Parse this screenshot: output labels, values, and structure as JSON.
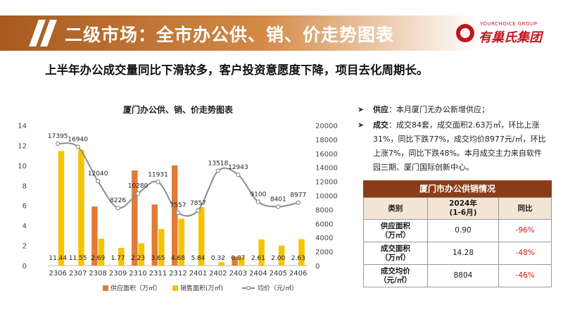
{
  "header": {
    "title": "二级市场：全市办公供、销、价走势图表",
    "logo_sub": "YOURCHOICE GROUP",
    "logo_name": "有巢氏集团"
  },
  "subtitle": "上半年办公成交量同比下滑较多，客户投资意愿度下降，项目去化周期长。",
  "colors": {
    "supply": "#e07b39",
    "sales": "#f5c400",
    "price": "#8c8c8c",
    "header": "#b5682b",
    "table_header": "#8a3d16",
    "negative": "#d21a1a"
  },
  "chart_data": {
    "type": "bar",
    "title": "厦门办公供、销、价走势图表",
    "categories": [
      "2306",
      "2307",
      "2308",
      "2309",
      "2310",
      "2311",
      "2312",
      "2401",
      "2402",
      "2403",
      "2404",
      "2405",
      "2406"
    ],
    "series": [
      {
        "name": "供应面积（万㎡）",
        "type": "bar",
        "axis": "left",
        "values": [
          0,
          0,
          5.9,
          0,
          9.5,
          6.1,
          10.0,
          0,
          0,
          0.9,
          0,
          0,
          0
        ]
      },
      {
        "name": "销售面积(万㎡)",
        "type": "bar",
        "axis": "left",
        "values": [
          11.44,
          11.55,
          2.69,
          1.77,
          2.23,
          3.65,
          4.68,
          5.84,
          0.32,
          0.87,
          2.61,
          2.0,
          2.63
        ],
        "labels": [
          "11.44",
          "11.55",
          "2.69",
          "1.77",
          "2.23",
          "3.65",
          "4.68",
          "5.84",
          "0.32",
          "0.87",
          "2.61",
          "2.00",
          "2.63"
        ]
      },
      {
        "name": "均价（元/㎡）",
        "type": "line",
        "axis": "right",
        "values": [
          17395,
          16940,
          12040,
          8226,
          10280,
          11931,
          7557,
          7857,
          13518,
          12943,
          9100,
          8401,
          8977
        ],
        "labels": [
          "17395",
          "16940",
          "12040",
          "8226",
          "10280",
          "11931",
          "7557",
          "7857",
          "13518",
          "12943",
          "9100",
          "8401",
          "8977"
        ]
      }
    ],
    "y_left": {
      "min": 0,
      "max": 14,
      "ticks": [
        "0",
        "2",
        "4",
        "6",
        "8",
        "10",
        "12",
        "14"
      ]
    },
    "y_right": {
      "min": 0,
      "max": 20000,
      "ticks": [
        "0",
        "2000",
        "4000",
        "6000",
        "8000",
        "10000",
        "12000",
        "14000",
        "16000",
        "18000",
        "20000"
      ]
    },
    "legend_position": "bottom",
    "grid": false
  },
  "notes": [
    {
      "head": "供应",
      "text": "：本月厦门无办公新增供应；"
    },
    {
      "head": "成交",
      "text": "：成交84套，成交面积2.63万㎡，环比上涨31%，同比下跌77%，成交均价8977元/㎡，环比上涨7%，同比下跌48%。本月成交主力来自软件园三期、厦门国际创新中心。"
    }
  ],
  "bullet_mark": "➤",
  "table": {
    "title": "厦门市办公供销情况",
    "headers": [
      "类别",
      "2024年\n(1-6月)",
      "同比"
    ],
    "rows": [
      {
        "label": "供应面积\n（万㎡）",
        "value": "0.90",
        "yoy": "-96%"
      },
      {
        "label": "成交面积\n（万㎡）",
        "value": "14.28",
        "yoy": "-48%"
      },
      {
        "label": "成交均价\n（元/㎡）",
        "value": "8804",
        "yoy": "-46%"
      }
    ]
  }
}
